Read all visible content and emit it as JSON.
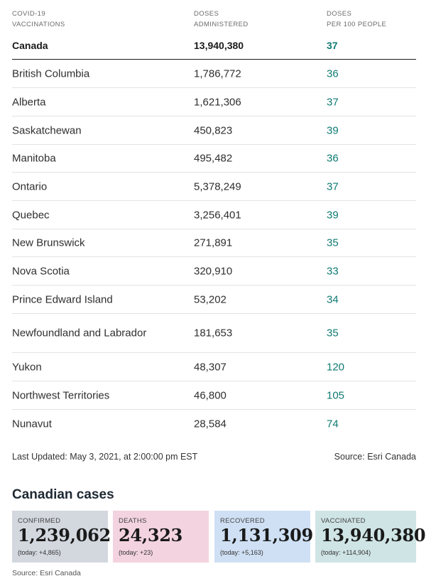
{
  "table": {
    "headers": {
      "col1": "COVID-19\nVACCINATIONS",
      "col2": "DOSES\nADMINISTERED",
      "col3": "DOSES\nPER 100 PEOPLE"
    },
    "total": {
      "name": "Canada",
      "doses": "13,940,380",
      "per100": "37"
    },
    "rows": [
      {
        "name": "British Columbia",
        "doses": "1,786,772",
        "per100": "36"
      },
      {
        "name": "Alberta",
        "doses": "1,621,306",
        "per100": "37"
      },
      {
        "name": "Saskatchewan",
        "doses": "450,823",
        "per100": "39"
      },
      {
        "name": "Manitoba",
        "doses": "495,482",
        "per100": "36"
      },
      {
        "name": "Ontario",
        "doses": "5,378,249",
        "per100": "37"
      },
      {
        "name": "Quebec",
        "doses": "3,256,401",
        "per100": "39"
      },
      {
        "name": "New Brunswick",
        "doses": "271,891",
        "per100": "35"
      },
      {
        "name": "Nova Scotia",
        "doses": "320,910",
        "per100": "33"
      },
      {
        "name": "Prince Edward Island",
        "doses": "53,202",
        "per100": "34"
      },
      {
        "name": "Newfoundland and Labrador",
        "doses": "181,653",
        "per100": "35"
      },
      {
        "name": "Yukon",
        "doses": "48,307",
        "per100": "120"
      },
      {
        "name": "Northwest Territories",
        "doses": "46,800",
        "per100": "105"
      },
      {
        "name": "Nunavut",
        "doses": "28,584",
        "per100": "74"
      }
    ]
  },
  "footer": {
    "updated": "Last Updated: May 3, 2021, at 2:00:00 pm EST",
    "source": "Source: Esri Canada"
  },
  "cases": {
    "title": "Canadian cases",
    "confirmed": {
      "label": "CONFIRMED",
      "value": "1,239,062",
      "today": "(today: +4,865)"
    },
    "deaths": {
      "label": "DEATHS",
      "value": "24,323",
      "today": "(today: +23)"
    },
    "recovered": {
      "label": "RECOVERED",
      "value": "1,131,309",
      "today": "(today: +5,163)"
    },
    "vaccinated": {
      "label": "VACCINATED",
      "value": "13,940,380",
      "today": "(today: +114,904)"
    },
    "source": "Source: Esri Canada"
  },
  "colors": {
    "teal": "#0f7a72",
    "confirmed_bg": "#d3d8df",
    "deaths_bg": "#f3d3df",
    "recovered_bg": "#cfe0f4",
    "vaccinated_bg": "#cfe4e5"
  }
}
